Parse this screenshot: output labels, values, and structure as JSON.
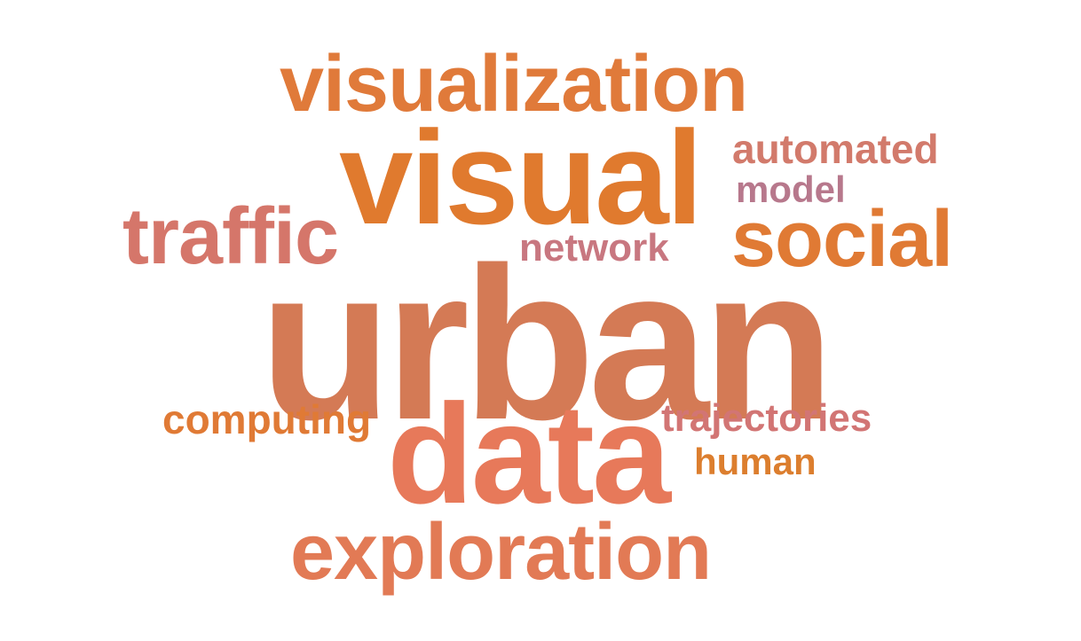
{
  "words": {
    "visualization": {
      "text": "visualization",
      "color": "#E07A3A"
    },
    "visual": {
      "text": "visual",
      "color": "#E07A2E"
    },
    "automated": {
      "text": "automated",
      "color": "#D27A6B"
    },
    "model": {
      "text": "model",
      "color": "#B7788C"
    },
    "traffic": {
      "text": "traffic",
      "color": "#D5766A"
    },
    "social": {
      "text": "social",
      "color": "#E07A34"
    },
    "network": {
      "text": "network",
      "color": "#C87780"
    },
    "urban": {
      "text": "urban",
      "color": "#D47A55"
    },
    "computing": {
      "text": "computing",
      "color": "#E07A35"
    },
    "trajectories": {
      "text": "trajectories",
      "color": "#D27574"
    },
    "data": {
      "text": "data",
      "color": "#E7795A"
    },
    "human": {
      "text": "human",
      "color": "#DC7E2E"
    },
    "exploration": {
      "text": "exploration",
      "color": "#E27A55"
    }
  }
}
